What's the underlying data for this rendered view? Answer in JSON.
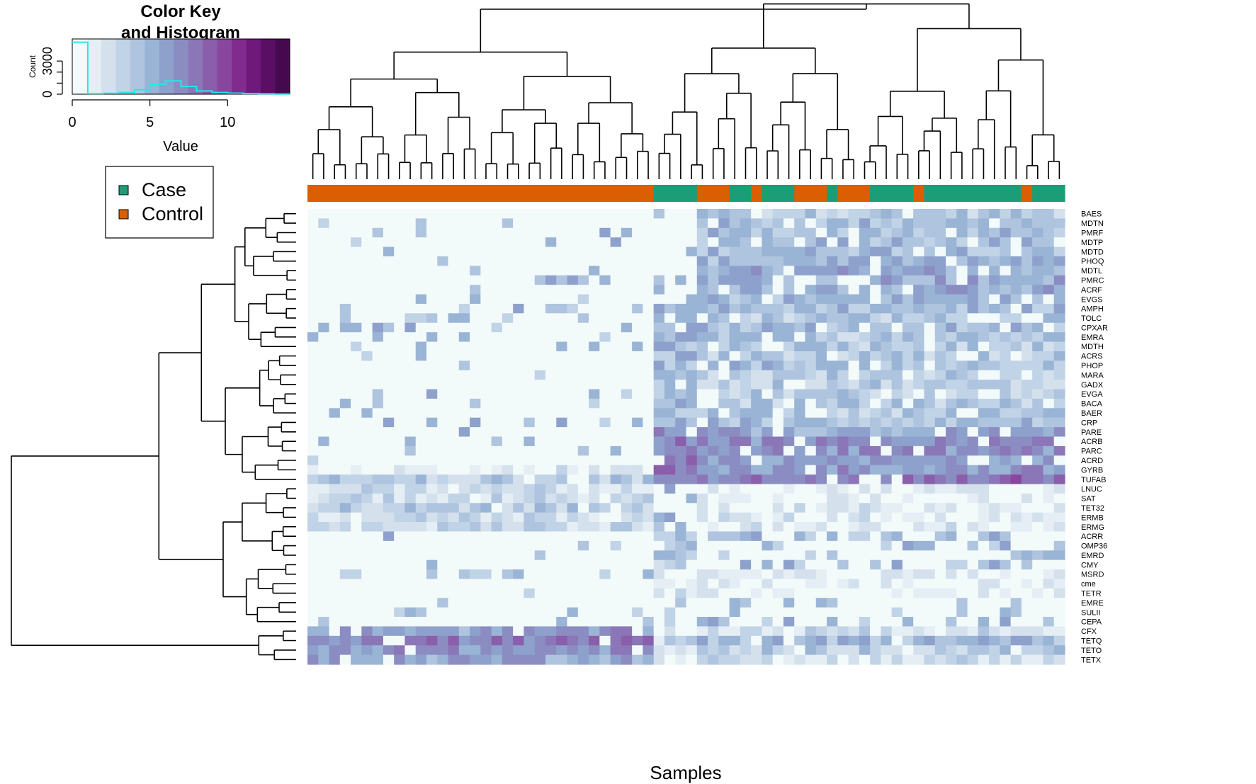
{
  "chart_data": {
    "type": "heatmap",
    "title": "",
    "xlabel": "Samples",
    "ylabel": "",
    "color_key": {
      "title_line1": "Color Key",
      "title_line2": "and Histogram",
      "xlabel": "Value",
      "ylabel": "Count",
      "x_ticks": [
        "0",
        "5",
        "10"
      ],
      "y_ticks": [
        "0",
        "3000"
      ],
      "value_range": [
        0,
        14
      ],
      "count_range": [
        0,
        5000
      ],
      "histogram_counts": [
        4700,
        60,
        80,
        150,
        400,
        900,
        1200,
        700,
        300,
        150,
        100,
        60,
        40,
        20
      ],
      "palette": [
        "#f3fafa",
        "#e4eef4",
        "#d4e1ed",
        "#c1d3e6",
        "#afc4de",
        "#9ab4d5",
        "#8ea1cc",
        "#8b8dc2",
        "#8b76b7",
        "#8a5eab",
        "#89469f",
        "#812b8f",
        "#6f1a7b",
        "#5a0e64",
        "#46094f"
      ],
      "histogram_color": "#25e8e8"
    },
    "legend": {
      "position": "top-left",
      "entries": [
        {
          "label": "Case",
          "color": "#1b9e77"
        },
        {
          "label": "Control",
          "color": "#d95f02"
        }
      ]
    },
    "sample_groups": [
      "Control",
      "Control",
      "Control",
      "Control",
      "Control",
      "Control",
      "Control",
      "Control",
      "Control",
      "Control",
      "Control",
      "Control",
      "Control",
      "Control",
      "Control",
      "Control",
      "Control",
      "Control",
      "Control",
      "Control",
      "Control",
      "Control",
      "Control",
      "Control",
      "Control",
      "Control",
      "Control",
      "Control",
      "Control",
      "Control",
      "Control",
      "Control",
      "Case",
      "Case",
      "Case",
      "Case",
      "Control",
      "Control",
      "Control",
      "Case",
      "Case",
      "Control",
      "Case",
      "Case",
      "Case",
      "Control",
      "Control",
      "Control",
      "Case",
      "Control",
      "Control",
      "Control",
      "Case",
      "Case",
      "Case",
      "Case",
      "Control",
      "Case",
      "Case",
      "Case",
      "Case",
      "Case",
      "Case",
      "Case",
      "Case",
      "Case",
      "Control",
      "Case",
      "Case",
      "Case"
    ],
    "genes": [
      "BAES",
      "MDTN",
      "PMRF",
      "MDTP",
      "MDTD",
      "PHOQ",
      "MDTL",
      "PMRC",
      "ACRF",
      "EVGS",
      "AMPH",
      "TOLC",
      "CPXAR",
      "EMRA",
      "MDTH",
      "ACRS",
      "PHOP",
      "MARA",
      "GADX",
      "EVGA",
      "BACA",
      "BAER",
      "CRP",
      "PARE",
      "ACRB",
      "PARC",
      "ACRD",
      "GYRB",
      "TUFAB",
      "LNUC",
      "SAT",
      "TET32",
      "ERMB",
      "ERMG",
      "ACRR",
      "OMP36",
      "EMRD",
      "CMY",
      "MSRD",
      "cme",
      "TETR",
      "EMRE",
      "SULII",
      "CEPA",
      "CFX",
      "TETQ",
      "TETO",
      "TETX"
    ],
    "gene_profiles": {
      "control_mean": [
        0.3,
        0.3,
        0.4,
        0.3,
        0.3,
        0.3,
        0.2,
        0.3,
        0.3,
        0.2,
        0.4,
        0.4,
        0.2,
        0.5,
        0.5,
        0.3,
        0.3,
        0.3,
        0.2,
        0.3,
        0.5,
        0.4,
        0.3,
        0.2,
        0.3,
        0.2,
        0.2,
        1.5,
        3.5,
        2.5,
        2.5,
        3.5,
        3.0,
        3.0,
        0.1,
        0.1,
        0.1,
        0.1,
        0.8,
        0.1,
        0.1,
        0.2,
        0.5,
        0.3,
        6.0,
        7.5,
        6.5,
        6.0
      ],
      "case_cluster1_mean": [
        0.5,
        0.5,
        0.4,
        0.4,
        0.6,
        0.6,
        0.4,
        0.5,
        0.4,
        0.4,
        5.5,
        5.0,
        5.0,
        5.0,
        4.5,
        4.5,
        4.5,
        4.5,
        4.0,
        4.0,
        5.0,
        5.0,
        5.0,
        6.5,
        7.0,
        7.0,
        7.5,
        7.5,
        8.0,
        0.5,
        0.5,
        0.5,
        0.5,
        0.5,
        4.0,
        4.0,
        4.5,
        4.0,
        1.0,
        2.0,
        2.0,
        0.5,
        0.5,
        0.5,
        1.5,
        3.0,
        2.0,
        1.5
      ],
      "case_cluster2_mean": [
        4.0,
        4.5,
        4.5,
        5.0,
        5.0,
        5.0,
        5.5,
        5.5,
        5.5,
        5.0,
        4.5,
        4.0,
        4.5,
        4.0,
        4.0,
        4.0,
        4.5,
        3.5,
        3.5,
        3.5,
        4.0,
        4.0,
        4.5,
        5.5,
        6.5,
        6.5,
        6.0,
        6.5,
        8.0,
        1.0,
        1.0,
        1.5,
        1.5,
        1.5,
        0.8,
        0.8,
        0.8,
        0.8,
        1.0,
        1.0,
        1.0,
        0.8,
        0.5,
        0.8,
        2.5,
        5.0,
        3.5,
        2.5
      ]
    }
  }
}
